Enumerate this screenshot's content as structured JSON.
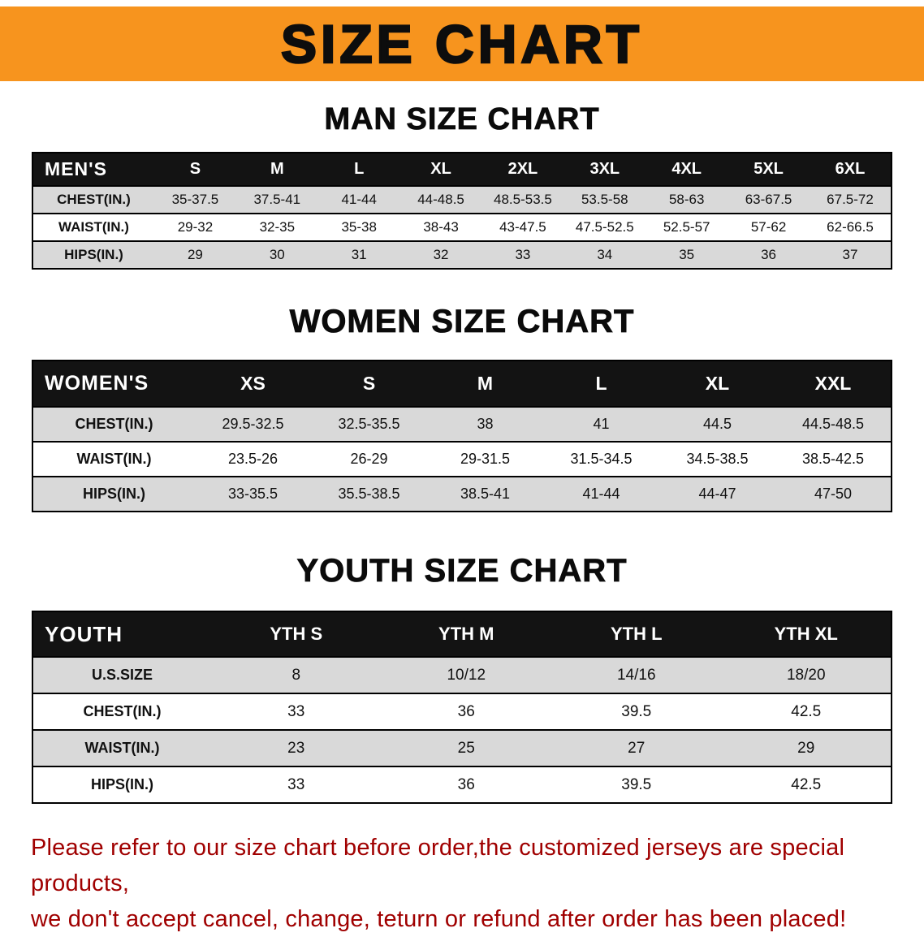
{
  "colors": {
    "banner_bg": "#F7941E",
    "header_bg": "#131313",
    "stripe": "#D9D9D9",
    "notice_text": "#A00000"
  },
  "banner": {
    "title": "SIZE CHART"
  },
  "men_chart": {
    "heading": "MAN SIZE CHART",
    "table": {
      "label": "MEN'S",
      "columns": [
        "S",
        "M",
        "L",
        "XL",
        "2XL",
        "3XL",
        "4XL",
        "5XL",
        "6XL"
      ],
      "rows": [
        {
          "label": "CHEST(IN.)",
          "values": [
            "35-37.5",
            "37.5-41",
            "41-44",
            "44-48.5",
            "48.5-53.5",
            "53.5-58",
            "58-63",
            "63-67.5",
            "67.5-72"
          ]
        },
        {
          "label": "WAIST(IN.)",
          "values": [
            "29-32",
            "32-35",
            "35-38",
            "38-43",
            "43-47.5",
            "47.5-52.5",
            "52.5-57",
            "57-62",
            "62-66.5"
          ]
        },
        {
          "label": "HIPS(IN.)",
          "values": [
            "29",
            "30",
            "31",
            "32",
            "33",
            "34",
            "35",
            "36",
            "37"
          ]
        }
      ]
    }
  },
  "women_chart": {
    "heading": "WOMEN SIZE CHART",
    "table": {
      "label": "WOMEN'S",
      "columns": [
        "XS",
        "S",
        "M",
        "L",
        "XL",
        "XXL"
      ],
      "rows": [
        {
          "label": "CHEST(IN.)",
          "values": [
            "29.5-32.5",
            "32.5-35.5",
            "38",
            "41",
            "44.5",
            "44.5-48.5"
          ]
        },
        {
          "label": "WAIST(IN.)",
          "values": [
            "23.5-26",
            "26-29",
            "29-31.5",
            "31.5-34.5",
            "34.5-38.5",
            "38.5-42.5"
          ]
        },
        {
          "label": "HIPS(IN.)",
          "values": [
            "33-35.5",
            "35.5-38.5",
            "38.5-41",
            "41-44",
            "44-47",
            "47-50"
          ]
        }
      ]
    }
  },
  "youth_chart": {
    "heading": "YOUTH SIZE CHART",
    "table": {
      "label": "YOUTH",
      "columns": [
        "YTH S",
        "YTH M",
        "YTH L",
        "YTH XL"
      ],
      "rows": [
        {
          "label": "U.S.SIZE",
          "values": [
            "8",
            "10/12",
            "14/16",
            "18/20"
          ]
        },
        {
          "label": "CHEST(IN.)",
          "values": [
            "33",
            "36",
            "39.5",
            "42.5"
          ]
        },
        {
          "label": "WAIST(IN.)",
          "values": [
            "23",
            "25",
            "27",
            "29"
          ]
        },
        {
          "label": "HIPS(IN.)",
          "values": [
            "33",
            "36",
            "39.5",
            "42.5"
          ]
        }
      ]
    }
  },
  "footer": {
    "line1": "Please refer to our size chart before order,the customized jerseys are special products,",
    "line2": "we don't accept cancel, change, teturn or refund after order has been placed!"
  }
}
